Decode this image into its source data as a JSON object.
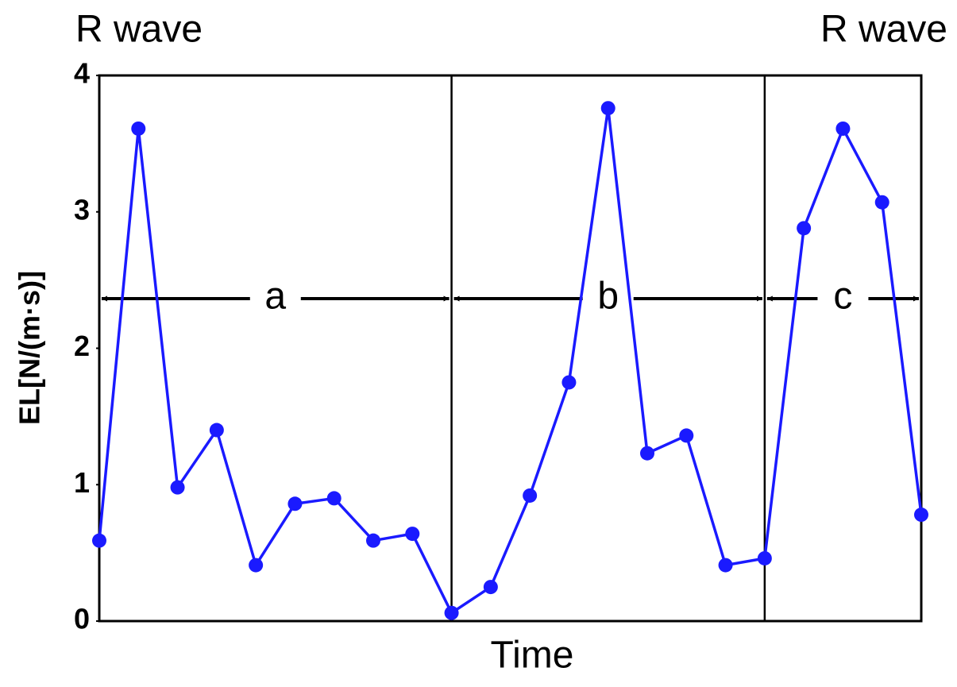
{
  "chart_data": {
    "type": "line",
    "x_label": "Time",
    "y_label": "EL[N/(m·s)]",
    "x": [
      0,
      1,
      2,
      3,
      4,
      5,
      6,
      7,
      8,
      9,
      10,
      11,
      12,
      13,
      14,
      15,
      16,
      17,
      18,
      19,
      20,
      21
    ],
    "xlim": [
      0,
      21
    ],
    "series": [
      {
        "name": null,
        "color": "#1a1aff",
        "values": [
          0.59,
          3.61,
          0.98,
          1.4,
          0.41,
          0.86,
          0.9,
          0.59,
          0.64,
          0.06,
          0.25,
          0.92,
          1.75,
          3.76,
          1.23,
          1.36,
          0.41,
          0.46,
          2.88,
          3.61,
          3.07,
          0.78
        ]
      }
    ],
    "ylim": [
      0,
      4
    ],
    "yticks": [
      0,
      1,
      2,
      3,
      4
    ],
    "dividers": [
      9,
      17
    ],
    "segments": [
      {
        "label": "a",
        "start": 0,
        "end": 9
      },
      {
        "label": "b",
        "start": 9,
        "end": 17
      },
      {
        "label": "c",
        "start": 17,
        "end": 21
      }
    ],
    "annotations": [
      "R wave",
      "R wave"
    ]
  }
}
